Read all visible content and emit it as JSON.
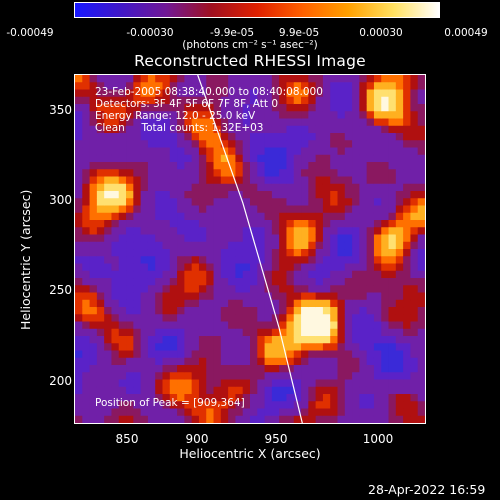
{
  "colorbar": {
    "ticks": [
      "-0.00049",
      "-0.00030",
      "-9.9e-05",
      "9.9e-05",
      "0.00030",
      "0.00049"
    ],
    "unit_label": "(photons cm⁻² s⁻¹ asec⁻²)",
    "colormap": [
      "#1818ff",
      "#4018c8",
      "#701896",
      "#a01020",
      "#e02000",
      "#ff6000",
      "#ffa000",
      "#ffe060",
      "#ffffff"
    ]
  },
  "chart_data": {
    "type": "heatmap",
    "title": "Reconstructed RHESSI Image",
    "xlabel": "Heliocentric X (arcsec)",
    "ylabel": "Heliocentric Y (arcsec)",
    "xlim": [
      832,
      1026
    ],
    "ylim": [
      176,
      372
    ],
    "x_ticks": [
      "850",
      "900",
      "950",
      "1000"
    ],
    "y_ticks": [
      "200",
      "250",
      "300",
      "350"
    ],
    "peak": [
      909,
      364
    ],
    "limb_curve": [
      [
        900,
        372
      ],
      [
        925,
        300
      ],
      [
        945,
        230
      ],
      [
        958,
        176
      ]
    ]
  },
  "overlay": {
    "line1": "23-Feb-2005 08:38:40.000 to 08:40:08.000",
    "line2": "Detectors: 3F 4F 5F 6F 7F 8F, Att 0",
    "line3": "Energy Range: 12.0 - 25.0 keV",
    "line4": "Clean     Total counts: 1.32E+03",
    "peak_text": "Position of Peak = [909,364]"
  },
  "timestamp": "28-Apr-2022 16:59"
}
